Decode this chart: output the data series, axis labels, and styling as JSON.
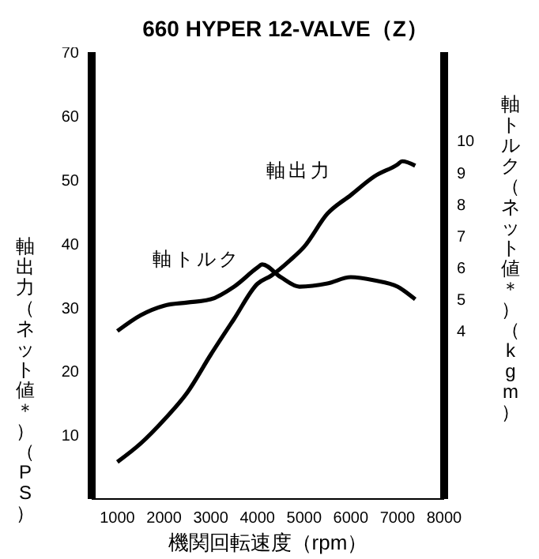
{
  "chart_data": {
    "type": "line",
    "title": "660 HYPER 12-VALVE（Z）",
    "xlabel": "機関回転速度（rpm）",
    "ylabel": "軸出力（ネット値＊）（PS）",
    "y2label": "軸トルク（ネット値＊）（kgm）",
    "xlim": [
      450,
      8000
    ],
    "xticks": [
      1000,
      2000,
      3000,
      4000,
      5000,
      6000,
      7000,
      8000
    ],
    "ylim": [
      0,
      70
    ],
    "yticks": [
      10,
      20,
      30,
      40,
      50,
      60,
      70
    ],
    "y2lim": [
      -1.3,
      12.8
    ],
    "y2ticks": [
      4,
      5,
      6,
      7,
      8,
      9,
      10
    ],
    "marker": "none",
    "line_style": "solid",
    "grid": false,
    "legend": false,
    "series": [
      {
        "name": "軸出力",
        "color": "#000000",
        "x": [
          1000,
          1500,
          2000,
          2500,
          3000,
          3500,
          4000,
          4300,
          4700,
          5000,
          5500,
          6000,
          6500,
          7000,
          7100,
          7380
        ],
        "values": [
          5.8,
          8.7,
          12.4,
          16.7,
          22.6,
          28.2,
          33.7,
          35,
          37.4,
          39.5,
          44.7,
          47.6,
          50.5,
          52.4,
          52.9,
          52.2
        ]
      },
      {
        "name": "軸トルク",
        "color": "#000000",
        "axis": "y2",
        "x": [
          1000,
          1500,
          2000,
          2500,
          3000,
          3500,
          4000,
          4100,
          4500,
          4900,
          5500,
          6000,
          6500,
          7000,
          7380
        ],
        "values": [
          4.0,
          4.5,
          4.8,
          4.9,
          5.0,
          5.4,
          6.0,
          6.1,
          5.7,
          5.4,
          5.5,
          5.7,
          5.6,
          5.4,
          5.0
        ]
      }
    ]
  }
}
